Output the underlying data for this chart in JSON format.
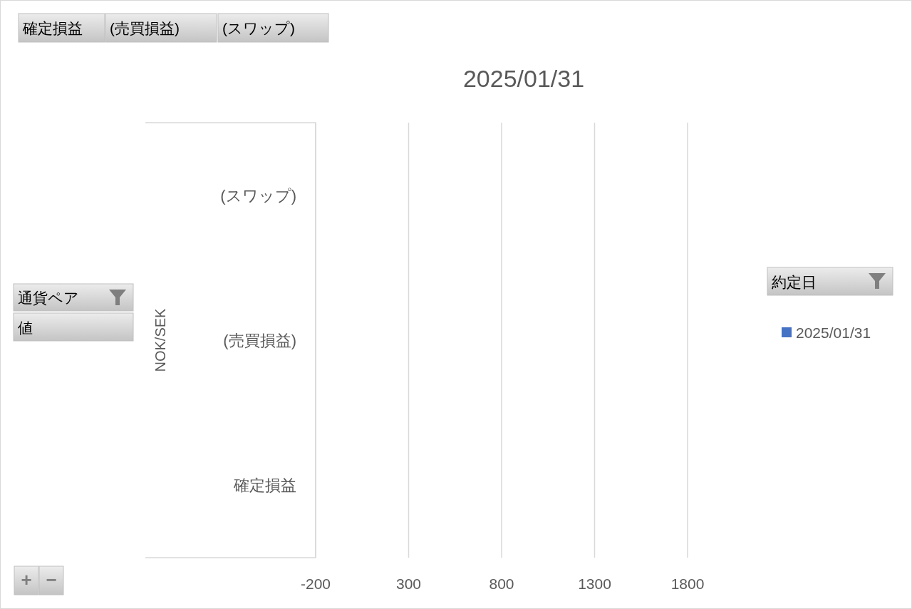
{
  "chart_data": {
    "type": "bar",
    "orientation": "horizontal",
    "title": "2025/01/31",
    "ylabel": "NOK/SEK",
    "categories": [
      "(スワップ)",
      "(売買損益)",
      "確定損益"
    ],
    "series": [
      {
        "name": "2025/01/31",
        "color": "#4472c4",
        "values": [
          null,
          null,
          null
        ]
      }
    ],
    "xlim": [
      -200,
      1800
    ],
    "xticks": [
      -200,
      300,
      800,
      1300,
      1800
    ],
    "grid": "x",
    "legend": "right",
    "legend_title": "約定日",
    "annotations": [
      "確定損益",
      "(売買損益)",
      "(スワップ)",
      "通貨ペア",
      "値",
      "+",
      "−"
    ]
  }
}
